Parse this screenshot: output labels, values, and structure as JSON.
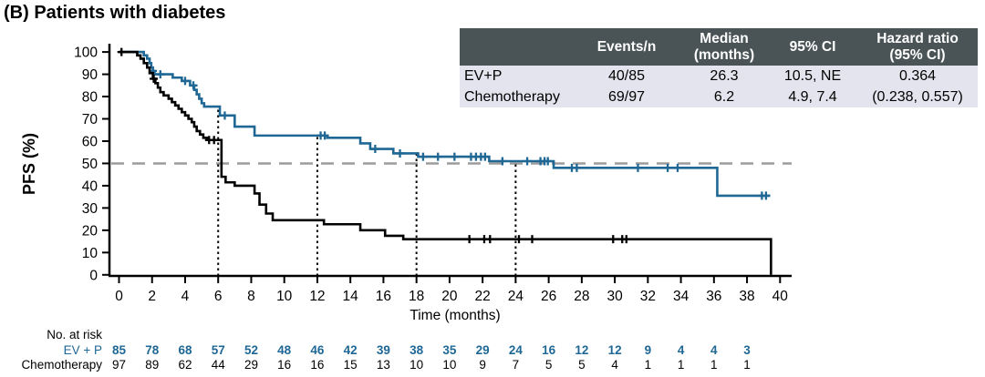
{
  "title": "(B) Patients with diabetes",
  "stats_table": {
    "headers": [
      "",
      "Events/n",
      "Median\n(months)",
      "95% CI",
      "Hazard ratio\n(95% CI)"
    ],
    "rows": [
      {
        "label": "EV+P",
        "values": [
          "40/85",
          "26.3",
          "10.5, NE",
          "0.364"
        ]
      },
      {
        "label": "Chemotherapy",
        "values": [
          "69/97",
          "6.2",
          "4.9, 7.4",
          "(0.238, 0.557)"
        ]
      }
    ],
    "header_bg": "#4A5456",
    "body_bg": "#E4E4EE"
  },
  "chart_data": {
    "type": "line",
    "subtype": "kaplan-meier-step",
    "title": "(B) Patients with diabetes",
    "xlabel": "Time (months)",
    "ylabel": "PFS (%)",
    "xlim": [
      0,
      40
    ],
    "ylim": [
      0,
      100
    ],
    "xticks": [
      0,
      2,
      4,
      6,
      8,
      10,
      12,
      14,
      16,
      18,
      20,
      22,
      24,
      26,
      28,
      30,
      32,
      34,
      36,
      38,
      40
    ],
    "yticks": [
      0,
      10,
      20,
      30,
      40,
      50,
      60,
      70,
      80,
      90,
      100
    ],
    "grid": false,
    "legend_position": "none",
    "reference_lines": {
      "h_dashed_at": 50,
      "h_dash_color": "#9C9C9C",
      "v_dotted_at": [
        6,
        12,
        18,
        24
      ],
      "v_dot_color": "#000000"
    },
    "series": [
      {
        "name": "EV+P",
        "color": "#1F6794",
        "steps": [
          [
            0,
            100
          ],
          [
            1.5,
            98.5
          ],
          [
            1.7,
            97
          ],
          [
            1.85,
            95
          ],
          [
            1.95,
            93
          ],
          [
            2.05,
            91.5
          ],
          [
            2.15,
            90
          ],
          [
            3.25,
            88.5
          ],
          [
            3.8,
            87
          ],
          [
            4.3,
            85
          ],
          [
            4.55,
            83
          ],
          [
            4.7,
            81
          ],
          [
            4.85,
            79
          ],
          [
            5.0,
            77
          ],
          [
            5.15,
            75.5
          ],
          [
            6.1,
            71.5
          ],
          [
            7.0,
            66.5
          ],
          [
            8.2,
            62.5
          ],
          [
            12.6,
            61.5
          ],
          [
            14.6,
            59
          ],
          [
            15.2,
            56.5
          ],
          [
            16.6,
            54.5
          ],
          [
            18.1,
            53
          ],
          [
            22.4,
            51
          ],
          [
            26.3,
            48
          ],
          [
            36.2,
            35.5
          ]
        ],
        "end_month": 39.4,
        "censor_months": [
          2.05,
          2.5,
          4.0,
          4.5,
          6.4,
          12.2,
          12.45,
          15.5,
          17.0,
          18.4,
          19.3,
          20.3,
          21.3,
          21.6,
          21.9,
          22.15,
          23.2,
          24.7,
          25.5,
          25.75,
          25.95,
          27.4,
          27.7,
          31.4,
          33.2,
          33.8,
          38.9,
          39.15
        ]
      },
      {
        "name": "Chemotherapy",
        "color": "#000000",
        "steps": [
          [
            0,
            100
          ],
          [
            1.1,
            98.5
          ],
          [
            1.3,
            97
          ],
          [
            1.5,
            95
          ],
          [
            1.7,
            93
          ],
          [
            1.85,
            90.5
          ],
          [
            2.05,
            88
          ],
          [
            2.2,
            86
          ],
          [
            2.35,
            84
          ],
          [
            2.5,
            82
          ],
          [
            2.7,
            80.5
          ],
          [
            3.0,
            79
          ],
          [
            3.2,
            77.5
          ],
          [
            3.4,
            76
          ],
          [
            3.6,
            74.5
          ],
          [
            3.8,
            73
          ],
          [
            4.0,
            71.5
          ],
          [
            4.2,
            70
          ],
          [
            4.4,
            68.5
          ],
          [
            4.55,
            66.5
          ],
          [
            4.7,
            64.5
          ],
          [
            4.9,
            63
          ],
          [
            5.1,
            61.5
          ],
          [
            5.35,
            60.5
          ],
          [
            6.2,
            44
          ],
          [
            6.45,
            41.5
          ],
          [
            7.0,
            40
          ],
          [
            8.2,
            36.5
          ],
          [
            8.5,
            31.5
          ],
          [
            8.9,
            27.5
          ],
          [
            9.3,
            24.5
          ],
          [
            12.4,
            22.7
          ],
          [
            14.6,
            20
          ],
          [
            16.1,
            17.5
          ],
          [
            17.2,
            16
          ],
          [
            39.45,
            0
          ]
        ],
        "end_month": 39.45,
        "censor_months": [
          0.15,
          2.1,
          5.45,
          5.75,
          21.2,
          22.1,
          22.45,
          24.2,
          25.0,
          29.9,
          30.45,
          30.7
        ]
      }
    ],
    "risk_table": {
      "title": "No. at risk",
      "times": [
        0,
        2,
        4,
        6,
        8,
        10,
        12,
        14,
        16,
        18,
        20,
        22,
        24,
        26,
        28,
        30,
        32,
        34,
        36,
        38
      ],
      "rows": [
        {
          "name": "EV + P",
          "color": "#1F6794",
          "bold": true,
          "counts": [
            85,
            78,
            68,
            57,
            52,
            48,
            46,
            42,
            39,
            38,
            35,
            29,
            24,
            16,
            12,
            12,
            9,
            4,
            4,
            3
          ]
        },
        {
          "name": "Chemotherapy",
          "color": "#000000",
          "bold": false,
          "counts": [
            97,
            89,
            62,
            44,
            29,
            16,
            16,
            15,
            13,
            10,
            10,
            9,
            7,
            5,
            5,
            4,
            1,
            1,
            1,
            1
          ]
        }
      ]
    }
  }
}
